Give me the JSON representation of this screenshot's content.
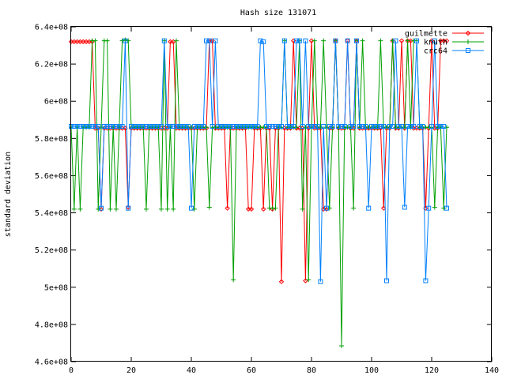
{
  "chart_data": {
    "type": "line",
    "title": "Hash size 131071",
    "xlabel": "",
    "ylabel": "standard deviation",
    "xlim": [
      0,
      140
    ],
    "ylim": [
      460000000,
      640000000
    ],
    "x_ticks": [
      0,
      20,
      40,
      60,
      80,
      100,
      120,
      140
    ],
    "y_ticks": [
      460000000,
      480000000,
      500000000,
      520000000,
      540000000,
      560000000,
      580000000,
      600000000,
      620000000,
      640000000
    ],
    "x_tick_labels": [
      "0",
      "20",
      "40",
      "60",
      "80",
      "100",
      "120",
      "140"
    ],
    "y_tick_labels": [
      "4.6e+08",
      "4.8e+08",
      "5e+08",
      "5.2e+08",
      "5.4e+08",
      "5.6e+08",
      "5.8e+08",
      "6e+08",
      "6.2e+08",
      "6.4e+08"
    ],
    "grid": false,
    "legend_position": "top-right",
    "series": [
      {
        "name": "guilmette",
        "color": "#ff0000",
        "marker": "diamond",
        "x": [
          0,
          1,
          2,
          3,
          4,
          5,
          6,
          7,
          8,
          9,
          10,
          11,
          12,
          13,
          14,
          15,
          16,
          17,
          18,
          19,
          20,
          21,
          22,
          23,
          24,
          25,
          26,
          27,
          28,
          29,
          30,
          31,
          32,
          33,
          34,
          35,
          36,
          37,
          38,
          39,
          40,
          41,
          42,
          43,
          44,
          45,
          46,
          47,
          48,
          49,
          50,
          51,
          52,
          53,
          54,
          55,
          56,
          57,
          58,
          59,
          60,
          61,
          62,
          63,
          64,
          65,
          66,
          67,
          68,
          69,
          70,
          71,
          72,
          73,
          74,
          75,
          76,
          77,
          78,
          79,
          80,
          81,
          82,
          83,
          84,
          85,
          86,
          87,
          88,
          89,
          90,
          91,
          92,
          93,
          94,
          95,
          96,
          97,
          98,
          99,
          100,
          101,
          102,
          103,
          104,
          105,
          106,
          107,
          108,
          109,
          110,
          111,
          112,
          113,
          114,
          115,
          116,
          117,
          118,
          119,
          120,
          121,
          122,
          123,
          124,
          125
        ],
        "y": [
          632000000,
          632000000,
          632000000,
          632000000,
          632000000,
          632000000,
          632000000,
          632000000,
          585500000,
          585500000,
          542000000,
          585500000,
          585500000,
          585500000,
          585500000,
          585500000,
          585500000,
          585500000,
          585500000,
          543000000,
          585500000,
          585500000,
          585500000,
          585500000,
          585500000,
          585500000,
          585500000,
          585500000,
          585500000,
          585500000,
          585500000,
          585500000,
          585500000,
          632000000,
          632000000,
          585500000,
          585500000,
          585500000,
          585500000,
          585500000,
          585500000,
          585500000,
          585500000,
          585500000,
          585500000,
          585500000,
          632500000,
          632500000,
          585500000,
          585500000,
          585500000,
          585500000,
          542500000,
          585500000,
          585500000,
          585500000,
          585500000,
          585500000,
          585500000,
          542000000,
          542000000,
          585500000,
          585500000,
          585500000,
          542000000,
          585500000,
          585500000,
          542000000,
          585500000,
          585500000,
          503000000,
          585500000,
          585500000,
          585500000,
          632500000,
          585500000,
          585500000,
          585500000,
          503500000,
          585500000,
          632500000,
          585500000,
          585500000,
          585500000,
          542000000,
          542000000,
          585500000,
          585500000,
          632500000,
          585500000,
          585500000,
          585500000,
          632500000,
          585500000,
          585500000,
          632500000,
          585500000,
          585500000,
          585500000,
          585500000,
          585500000,
          585500000,
          585500000,
          585500000,
          542500000,
          585500000,
          585500000,
          632500000,
          585500000,
          585500000,
          632500000,
          585500000,
          632500000,
          632500000,
          585500000,
          585500000,
          585500000,
          585500000,
          542500000,
          585500000,
          632500000,
          585500000,
          585500000,
          632500000,
          632500000,
          632500000
        ]
      },
      {
        "name": "knuth",
        "color": "#00a000",
        "marker": "plus",
        "x": [
          0,
          1,
          2,
          3,
          4,
          5,
          6,
          7,
          8,
          9,
          10,
          11,
          12,
          13,
          14,
          15,
          16,
          17,
          18,
          19,
          20,
          21,
          22,
          23,
          24,
          25,
          26,
          27,
          28,
          29,
          30,
          31,
          32,
          33,
          34,
          35,
          36,
          37,
          38,
          39,
          40,
          41,
          42,
          43,
          44,
          45,
          46,
          47,
          48,
          49,
          50,
          51,
          52,
          53,
          54,
          55,
          56,
          57,
          58,
          59,
          60,
          61,
          62,
          63,
          64,
          65,
          66,
          67,
          68,
          69,
          70,
          71,
          72,
          73,
          74,
          75,
          76,
          77,
          78,
          79,
          80,
          81,
          82,
          83,
          84,
          85,
          86,
          87,
          88,
          89,
          90,
          91,
          92,
          93,
          94,
          95,
          96,
          97,
          98,
          99,
          100,
          101,
          102,
          103,
          104,
          105,
          106,
          107,
          108,
          109,
          110,
          111,
          112,
          113,
          114,
          115,
          116,
          117,
          118,
          119,
          120,
          121,
          122,
          123,
          124,
          125
        ],
        "y": [
          586000000,
          542000000,
          586000000,
          542000000,
          586000000,
          586000000,
          586000000,
          632500000,
          632500000,
          542000000,
          586000000,
          632500000,
          632500000,
          542000000,
          586000000,
          542000000,
          586000000,
          632500000,
          633000000,
          632500000,
          586000000,
          586000000,
          586000000,
          586000000,
          586000000,
          542000000,
          586000000,
          586000000,
          586000000,
          586000000,
          542000000,
          632500000,
          542000000,
          586000000,
          542000000,
          632500000,
          586000000,
          586000000,
          586000000,
          586000000,
          586000000,
          542000000,
          586000000,
          586000000,
          586000000,
          586000000,
          543000000,
          586000000,
          586000000,
          586000000,
          586000000,
          586000000,
          586000000,
          586000000,
          504000000,
          586000000,
          586000000,
          586000000,
          586000000,
          586000000,
          586000000,
          586000000,
          586000000,
          586000000,
          586000000,
          586000000,
          542500000,
          542500000,
          542500000,
          586000000,
          586000000,
          632500000,
          586000000,
          586000000,
          586000000,
          586000000,
          632500000,
          542000000,
          586000000,
          504000000,
          586000000,
          632500000,
          586000000,
          586000000,
          632500000,
          586000000,
          542500000,
          586000000,
          632500000,
          586000000,
          468500000,
          586000000,
          586000000,
          586000000,
          542500000,
          632500000,
          586000000,
          632500000,
          586000000,
          586000000,
          586000000,
          586000000,
          586000000,
          632500000,
          586000000,
          586000000,
          586000000,
          632500000,
          586000000,
          586000000,
          586000000,
          586000000,
          632500000,
          586000000,
          632500000,
          632500000,
          586000000,
          586000000,
          586000000,
          586000000,
          586000000,
          543000000,
          586000000,
          586000000,
          542500000,
          586000000
        ]
      },
      {
        "name": "crc64",
        "color": "#0080ff",
        "marker": "square",
        "x": [
          0,
          1,
          2,
          3,
          4,
          5,
          6,
          7,
          8,
          9,
          10,
          11,
          12,
          13,
          14,
          15,
          16,
          17,
          18,
          19,
          20,
          21,
          22,
          23,
          24,
          25,
          26,
          27,
          28,
          29,
          30,
          31,
          32,
          33,
          34,
          35,
          36,
          37,
          38,
          39,
          40,
          41,
          42,
          43,
          44,
          45,
          46,
          47,
          48,
          49,
          50,
          51,
          52,
          53,
          54,
          55,
          56,
          57,
          58,
          59,
          60,
          61,
          62,
          63,
          64,
          65,
          66,
          67,
          68,
          69,
          70,
          71,
          72,
          73,
          74,
          75,
          76,
          77,
          78,
          79,
          80,
          81,
          82,
          83,
          84,
          85,
          86,
          87,
          88,
          89,
          90,
          91,
          92,
          93,
          94,
          95,
          96,
          97,
          98,
          99,
          100,
          101,
          102,
          103,
          104,
          105,
          106,
          107,
          108,
          109,
          110,
          111,
          112,
          113,
          114,
          115,
          116,
          117,
          118,
          119,
          120,
          121,
          122,
          123,
          124,
          125
        ],
        "y": [
          586500000,
          586500000,
          586500000,
          586500000,
          586500000,
          586500000,
          586500000,
          586500000,
          586500000,
          586500000,
          542500000,
          586500000,
          586500000,
          586500000,
          586500000,
          586500000,
          586500000,
          586500000,
          632500000,
          542500000,
          586500000,
          586500000,
          586500000,
          586500000,
          586500000,
          586500000,
          586500000,
          586500000,
          586500000,
          586500000,
          586500000,
          632500000,
          586500000,
          586500000,
          586500000,
          586500000,
          586500000,
          586500000,
          586500000,
          586500000,
          542500000,
          586500000,
          586500000,
          586500000,
          586500000,
          632500000,
          632500000,
          586500000,
          632500000,
          586500000,
          586500000,
          586500000,
          586500000,
          586500000,
          586500000,
          586500000,
          586500000,
          586500000,
          586500000,
          586500000,
          586500000,
          586500000,
          586500000,
          632500000,
          632000000,
          586500000,
          586500000,
          586500000,
          586500000,
          586500000,
          586500000,
          632500000,
          586500000,
          586500000,
          586500000,
          632500000,
          632500000,
          586500000,
          632500000,
          586500000,
          586500000,
          586500000,
          586500000,
          503000000,
          586500000,
          542500000,
          586500000,
          586500000,
          632500000,
          586500000,
          586500000,
          586500000,
          632500000,
          586500000,
          586500000,
          632500000,
          586500000,
          586500000,
          586500000,
          542500000,
          586500000,
          586500000,
          586500000,
          586500000,
          586500000,
          503500000,
          586500000,
          586500000,
          632500000,
          586500000,
          586500000,
          543000000,
          586500000,
          586500000,
          586500000,
          632500000,
          586500000,
          586500000,
          503500000,
          542500000,
          586500000,
          632500000,
          586500000,
          586500000,
          586500000,
          542500000
        ]
      }
    ]
  }
}
